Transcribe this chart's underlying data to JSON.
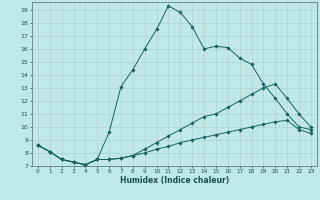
{
  "xlabel": "Humidex (Indice chaleur)",
  "background_color": "#c0e8e8",
  "grid_color": "#a8cccc",
  "line_color": "#1a6060",
  "xlim": [
    -0.5,
    23.5
  ],
  "ylim": [
    7,
    19.6
  ],
  "yticks": [
    7,
    8,
    9,
    10,
    11,
    12,
    13,
    14,
    15,
    16,
    17,
    18,
    19
  ],
  "xticks": [
    0,
    1,
    2,
    3,
    4,
    5,
    6,
    7,
    8,
    9,
    10,
    11,
    12,
    13,
    14,
    15,
    16,
    17,
    18,
    19,
    20,
    21,
    22,
    23
  ],
  "curve1_x": [
    0,
    1,
    2,
    3,
    4,
    5,
    6,
    7,
    8,
    9,
    10,
    11,
    12,
    13,
    14,
    15,
    16,
    17,
    18,
    19,
    20,
    21,
    22,
    23
  ],
  "curve1_y": [
    8.6,
    8.1,
    7.5,
    7.3,
    7.1,
    7.5,
    9.6,
    13.1,
    14.4,
    16.0,
    17.5,
    19.3,
    18.8,
    17.7,
    16.0,
    16.2,
    16.1,
    15.3,
    14.8,
    13.3,
    12.2,
    11.0,
    10.0,
    9.8
  ],
  "curve2_x": [
    0,
    1,
    2,
    3,
    4,
    5,
    6,
    7,
    8,
    9,
    10,
    11,
    12,
    13,
    14,
    15,
    16,
    17,
    18,
    19,
    20,
    21,
    22,
    23
  ],
  "curve2_y": [
    8.6,
    8.1,
    7.5,
    7.3,
    7.1,
    7.5,
    7.5,
    7.6,
    7.8,
    8.3,
    8.8,
    9.3,
    9.8,
    10.3,
    10.8,
    11.0,
    11.5,
    12.0,
    12.5,
    13.0,
    13.3,
    12.2,
    11.0,
    10.0
  ],
  "curve3_x": [
    0,
    1,
    2,
    3,
    4,
    5,
    6,
    7,
    8,
    9,
    10,
    11,
    12,
    13,
    14,
    15,
    16,
    17,
    18,
    19,
    20,
    21,
    22,
    23
  ],
  "curve3_y": [
    8.6,
    8.1,
    7.5,
    7.3,
    7.1,
    7.5,
    7.5,
    7.6,
    7.8,
    8.0,
    8.3,
    8.5,
    8.8,
    9.0,
    9.2,
    9.4,
    9.6,
    9.8,
    10.0,
    10.2,
    10.4,
    10.5,
    9.8,
    9.5
  ]
}
